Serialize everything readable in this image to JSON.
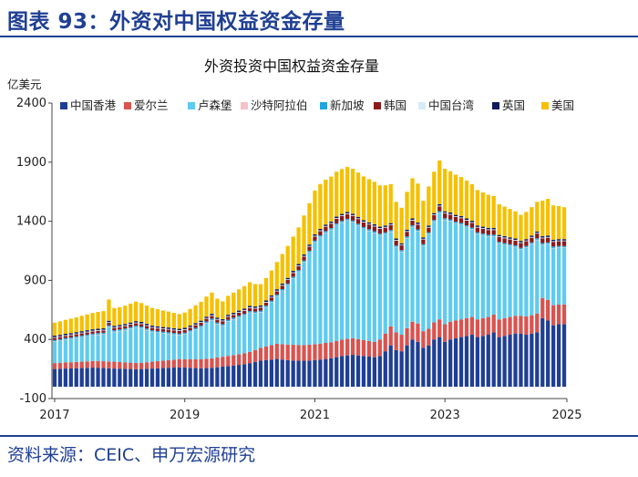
{
  "figure_title": "图表 93：外资对中国权益资金存量",
  "source_note": "资料来源：CEIC、申万宏源研究",
  "chart_data": {
    "type": "bar",
    "stacked": true,
    "title": "外资投资中国权益资金存量",
    "ylabel": "亿美元",
    "ylim": [
      -100,
      2400
    ],
    "yticks": [
      -100,
      400,
      900,
      1400,
      1900,
      2400
    ],
    "x_start": "2017-01",
    "x_tick_labels": [
      "2017",
      "2019",
      "2021",
      "2023",
      "2025"
    ],
    "legend_position": "top",
    "grid": false,
    "series": [
      {
        "name": "中国香港",
        "color": "#1f3f93",
        "values": [
          150,
          152,
          154,
          155,
          157,
          158,
          160,
          162,
          161,
          158,
          156,
          154,
          153,
          152,
          150,
          148,
          150,
          152,
          154,
          156,
          158,
          160,
          162,
          164,
          162,
          160,
          158,
          156,
          158,
          160,
          165,
          170,
          175,
          180,
          185,
          190,
          200,
          210,
          220,
          225,
          230,
          235,
          230,
          225,
          222,
          220,
          220,
          222,
          225,
          230,
          235,
          240,
          250,
          260,
          265,
          270,
          265,
          260,
          255,
          250,
          260,
          300,
          350,
          310,
          300,
          350,
          400,
          380,
          330,
          350,
          400,
          420,
          380,
          400,
          410,
          420,
          430,
          440,
          420,
          430,
          440,
          460,
          420,
          430,
          440,
          450,
          450,
          440,
          450,
          460,
          580,
          560,
          520,
          530,
          530
        ]
      },
      {
        "name": "爱尔兰",
        "color": "#d9534f",
        "values": [
          50,
          50,
          52,
          52,
          53,
          54,
          55,
          56,
          57,
          58,
          58,
          58,
          56,
          55,
          54,
          53,
          53,
          55,
          58,
          60,
          62,
          65,
          67,
          70,
          70,
          72,
          74,
          76,
          78,
          80,
          82,
          84,
          86,
          88,
          90,
          92,
          95,
          100,
          108,
          115,
          122,
          128,
          130,
          132,
          133,
          132,
          132,
          133,
          135,
          135,
          136,
          136,
          136,
          138,
          140,
          140,
          138,
          135,
          132,
          130,
          140,
          150,
          160,
          150,
          140,
          145,
          150,
          155,
          140,
          140,
          145,
          150,
          150,
          150,
          150,
          150,
          150,
          150,
          150,
          150,
          150,
          150,
          150,
          150,
          150,
          150,
          150,
          155,
          155,
          160,
          170,
          175,
          170,
          165,
          165
        ]
      },
      {
        "name": "卢森堡",
        "color": "#5ecbf0",
        "values": [
          180,
          185,
          190,
          195,
          200,
          205,
          210,
          215,
          220,
          225,
          290,
          250,
          260,
          270,
          285,
          300,
          290,
          270,
          250,
          240,
          230,
          220,
          210,
          200,
          210,
          230,
          250,
          270,
          300,
          320,
          280,
          260,
          290,
          300,
          310,
          320,
          330,
          310,
          300,
          330,
          360,
          400,
          450,
          500,
          560,
          620,
          700,
          780,
          860,
          900,
          930,
          950,
          980,
          990,
          1000,
          980,
          960,
          940,
          930,
          920,
          880,
          840,
          800,
          720,
          700,
          760,
          800,
          780,
          720,
          800,
          850,
          900,
          880,
          850,
          820,
          800,
          770,
          740,
          720,
          700,
          680,
          660,
          640,
          620,
          600,
          580,
          560,
          580,
          600,
          620,
          450,
          470,
          480,
          480,
          480
        ]
      },
      {
        "name": "沙特阿拉伯",
        "color": "#f4c2c8",
        "values": [
          4,
          4,
          4,
          4,
          4,
          4,
          4,
          4,
          4,
          4,
          4,
          4,
          4,
          4,
          4,
          4,
          4,
          4,
          4,
          4,
          4,
          4,
          4,
          4,
          4,
          4,
          4,
          4,
          4,
          4,
          4,
          4,
          4,
          4,
          4,
          4,
          4,
          4,
          4,
          4,
          4,
          4,
          4,
          4,
          4,
          4,
          4,
          4,
          4,
          4,
          4,
          4,
          4,
          4,
          4,
          4,
          4,
          4,
          4,
          4,
          4,
          4,
          4,
          4,
          4,
          4,
          4,
          4,
          4,
          4,
          4,
          4,
          4,
          4,
          4,
          4,
          4,
          4,
          4,
          4,
          4,
          4,
          4,
          4,
          4,
          4,
          4,
          4,
          4,
          4,
          4,
          4,
          4,
          4,
          4
        ]
      },
      {
        "name": "新加坡",
        "color": "#1fa5e0",
        "values": [
          12,
          12,
          12,
          12,
          12,
          12,
          12,
          12,
          12,
          12,
          12,
          12,
          12,
          12,
          12,
          12,
          12,
          12,
          12,
          12,
          12,
          12,
          12,
          12,
          12,
          12,
          12,
          12,
          12,
          12,
          12,
          12,
          12,
          12,
          12,
          12,
          12,
          12,
          12,
          12,
          12,
          12,
          12,
          12,
          12,
          12,
          12,
          12,
          12,
          12,
          12,
          12,
          12,
          12,
          12,
          12,
          12,
          12,
          12,
          12,
          12,
          12,
          12,
          12,
          12,
          12,
          12,
          12,
          12,
          12,
          12,
          12,
          12,
          12,
          12,
          12,
          12,
          12,
          12,
          12,
          12,
          12,
          12,
          12,
          12,
          12,
          12,
          12,
          12,
          12,
          12,
          12,
          12,
          12,
          12
        ]
      },
      {
        "name": "韩国",
        "color": "#8b1a1a",
        "values": [
          18,
          18,
          18,
          18,
          18,
          19,
          19,
          19,
          19,
          19,
          20,
          20,
          20,
          20,
          20,
          20,
          21,
          21,
          21,
          21,
          21,
          22,
          22,
          22,
          22,
          22,
          23,
          23,
          23,
          23,
          24,
          24,
          24,
          24,
          25,
          25,
          25,
          25,
          26,
          26,
          27,
          28,
          29,
          30,
          31,
          32,
          33,
          34,
          35,
          36,
          37,
          38,
          39,
          40,
          40,
          40,
          40,
          40,
          40,
          40,
          40,
          40,
          40,
          40,
          40,
          40,
          40,
          40,
          40,
          40,
          40,
          40,
          40,
          40,
          40,
          40,
          40,
          40,
          40,
          40,
          40,
          40,
          40,
          40,
          40,
          40,
          40,
          40,
          40,
          40,
          40,
          40,
          40,
          40,
          40
        ]
      },
      {
        "name": "中国台湾",
        "color": "#d6ecf5",
        "values": [
          6,
          6,
          6,
          6,
          6,
          6,
          6,
          6,
          6,
          6,
          6,
          6,
          6,
          6,
          6,
          6,
          6,
          6,
          6,
          6,
          6,
          6,
          6,
          6,
          6,
          6,
          6,
          6,
          6,
          6,
          6,
          6,
          6,
          6,
          6,
          6,
          6,
          6,
          6,
          6,
          6,
          6,
          6,
          6,
          6,
          6,
          6,
          6,
          6,
          6,
          6,
          6,
          6,
          6,
          6,
          6,
          6,
          6,
          6,
          6,
          6,
          6,
          6,
          6,
          6,
          6,
          6,
          6,
          6,
          6,
          6,
          6,
          6,
          6,
          6,
          6,
          6,
          6,
          6,
          6,
          6,
          6,
          6,
          6,
          6,
          6,
          6,
          6,
          6,
          6,
          6,
          6,
          6,
          6,
          6
        ]
      },
      {
        "name": "英国",
        "color": "#101a5c",
        "values": [
          12,
          12,
          12,
          12,
          12,
          12,
          12,
          12,
          12,
          12,
          12,
          12,
          12,
          12,
          12,
          12,
          12,
          12,
          12,
          12,
          12,
          12,
          12,
          12,
          12,
          12,
          12,
          12,
          12,
          12,
          12,
          12,
          12,
          12,
          12,
          12,
          12,
          12,
          12,
          12,
          12,
          12,
          12,
          12,
          12,
          12,
          12,
          12,
          12,
          12,
          12,
          12,
          12,
          12,
          12,
          12,
          12,
          12,
          12,
          12,
          12,
          12,
          12,
          12,
          12,
          12,
          12,
          12,
          12,
          12,
          12,
          12,
          12,
          12,
          12,
          12,
          12,
          12,
          12,
          12,
          12,
          12,
          12,
          12,
          12,
          12,
          12,
          12,
          12,
          12,
          12,
          12,
          12,
          12,
          12
        ]
      },
      {
        "name": "美国",
        "color": "#f5c000",
        "values": [
          110,
          114,
          118,
          122,
          126,
          130,
          134,
          138,
          142,
          146,
          180,
          150,
          150,
          155,
          160,
          165,
          160,
          155,
          150,
          145,
          140,
          135,
          130,
          125,
          130,
          140,
          150,
          160,
          170,
          180,
          160,
          150,
          160,
          170,
          180,
          190,
          200,
          190,
          180,
          190,
          210,
          230,
          250,
          270,
          290,
          310,
          330,
          350,
          370,
          380,
          380,
          380,
          380,
          380,
          380,
          380,
          375,
          370,
          365,
          360,
          350,
          340,
          330,
          310,
          300,
          320,
          340,
          330,
          310,
          330,
          350,
          370,
          360,
          350,
          340,
          330,
          320,
          310,
          300,
          290,
          280,
          270,
          260,
          250,
          240,
          230,
          220,
          230,
          240,
          250,
          300,
          310,
          290,
          280,
          270
        ]
      }
    ]
  }
}
